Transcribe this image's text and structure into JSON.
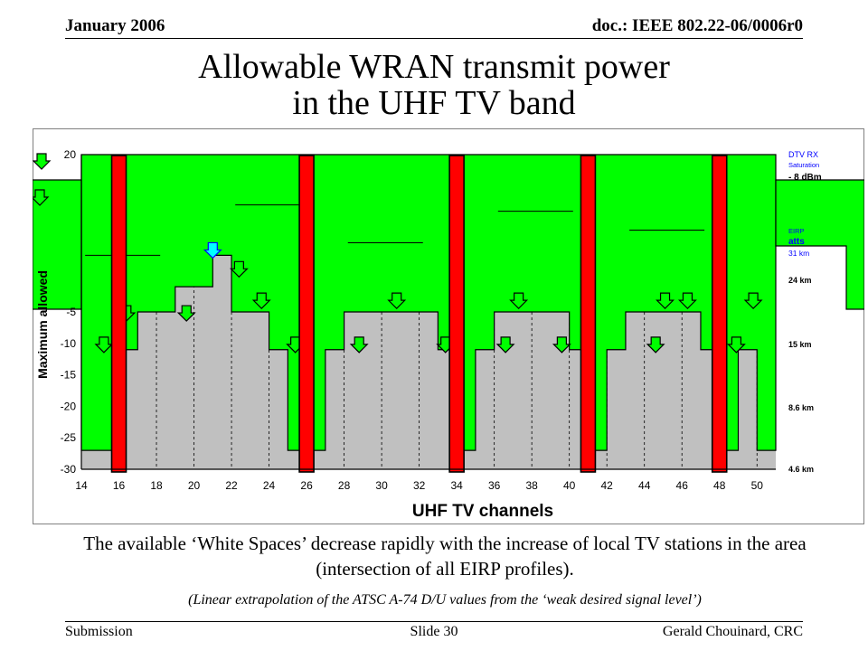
{
  "header": {
    "date": "January 2006",
    "doc": "doc.: IEEE 802.22-06/0006r0"
  },
  "title": {
    "line1": "Allowable WRAN transmit power",
    "line2": "in the UHF TV band"
  },
  "chart_data": {
    "type": "area",
    "xlabel": "UHF TV channels",
    "ylabel": "Maximum allowed",
    "xlim": [
      14,
      51
    ],
    "ylim": [
      -30,
      20
    ],
    "xticks": [
      14,
      16,
      18,
      20,
      22,
      24,
      26,
      28,
      30,
      32,
      34,
      36,
      38,
      40,
      42,
      44,
      46,
      48,
      50
    ],
    "yticks": [
      20,
      -5,
      -10,
      -15,
      -20,
      -25,
      -30
    ],
    "series": [
      {
        "values": [
          [
            14,
            -27
          ],
          [
            16,
            -27
          ],
          [
            16,
            -11
          ],
          [
            17,
            -11
          ],
          [
            17,
            -5
          ],
          [
            19,
            -5
          ],
          [
            19,
            -1
          ],
          [
            21,
            -1
          ],
          [
            21,
            4
          ],
          [
            22,
            4
          ],
          [
            22,
            -5
          ],
          [
            24,
            -5
          ],
          [
            24,
            -11
          ],
          [
            25,
            -11
          ],
          [
            25,
            -27
          ],
          [
            26,
            -27
          ],
          [
            26,
            -27
          ],
          [
            27,
            -27
          ],
          [
            27,
            -11
          ],
          [
            28,
            -11
          ],
          [
            28,
            -5
          ],
          [
            33,
            -5
          ],
          [
            33,
            -11
          ],
          [
            34,
            -11
          ],
          [
            34,
            -27
          ],
          [
            35,
            -27
          ],
          [
            35,
            -11
          ],
          [
            36,
            -11
          ],
          [
            36,
            -5
          ],
          [
            40,
            -5
          ],
          [
            40,
            -11
          ],
          [
            41,
            -11
          ],
          [
            41,
            -27
          ],
          [
            42,
            -27
          ],
          [
            42,
            -11
          ],
          [
            43,
            -11
          ],
          [
            43,
            -5
          ],
          [
            47,
            -5
          ],
          [
            47,
            -11
          ],
          [
            48,
            -11
          ],
          [
            48,
            -27
          ],
          [
            49,
            -27
          ],
          [
            49,
            -11
          ],
          [
            50,
            -11
          ],
          [
            50,
            -27
          ],
          [
            51,
            -27
          ]
        ]
      }
    ],
    "taboo_channels": [
      16,
      26,
      34,
      41,
      48
    ],
    "right_annotations": {
      "dtv": "DTV RX",
      "saturation": "Saturation",
      "level": "- 8 dBm",
      "eirp": "EIRP",
      "watts": "atts",
      "dbm": "31 km",
      "d24": "24 km",
      "d15": "15 km",
      "d86": "8.6 km",
      "d46": "4.6 km"
    },
    "colors": {
      "area": "#00ff00",
      "gray": "#c0c0c0",
      "taboo": "#ff0000",
      "blue": "#0000ff"
    }
  },
  "caption": "The available ‘White Spaces’ decrease rapidly with the increase of local TV stations in the area (intersection of all EIRP profiles).",
  "note": "(Linear extrapolation of the ATSC A-74 D/U values from the ‘weak desired signal level’)",
  "footer": {
    "left": "Submission",
    "center": "Slide 30",
    "right": "Gerald Chouinard, CRC"
  }
}
